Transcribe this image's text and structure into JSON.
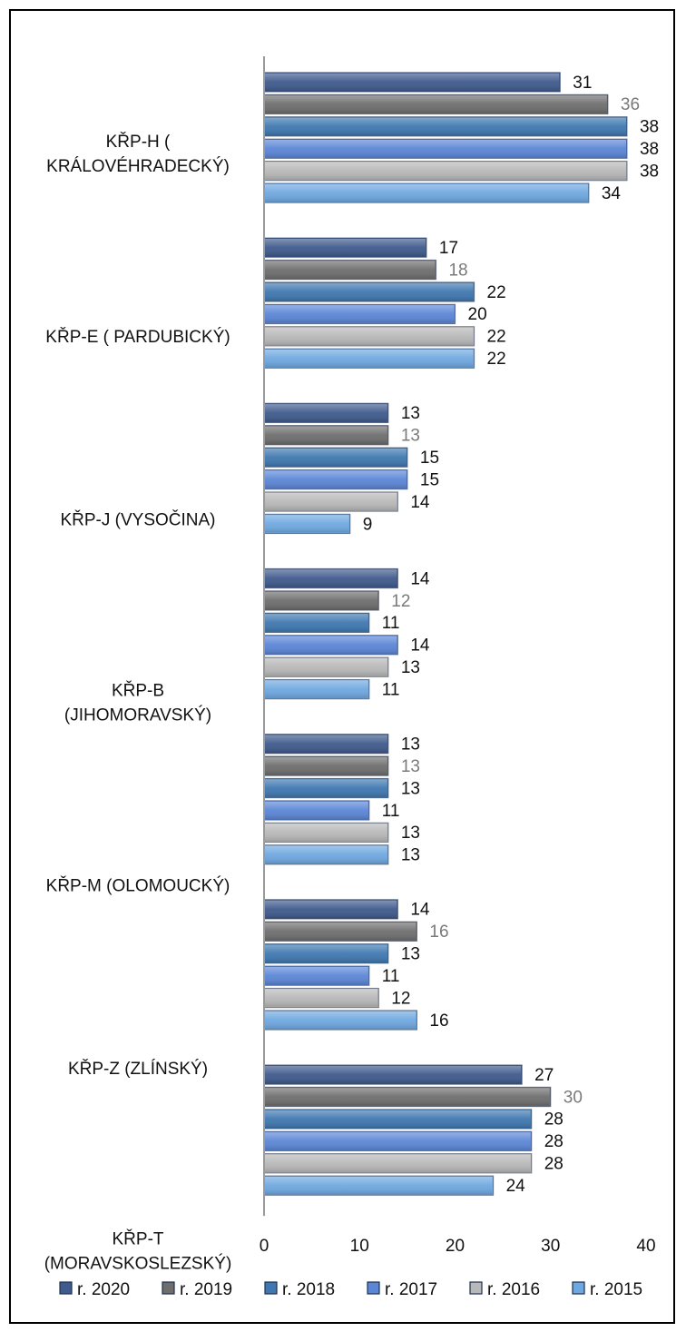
{
  "chart_data": {
    "type": "bar",
    "orientation": "horizontal",
    "title": "",
    "xlabel": "",
    "ylabel": "",
    "xlim": [
      0,
      40
    ],
    "ticks": [
      0,
      10,
      20,
      30,
      40
    ],
    "grid": false,
    "legend_position": "bottom",
    "categories": [
      [
        "KŘP-H (",
        "KRÁLOVÉHRADECKÝ)"
      ],
      [
        "KŘP-E ( PARDUBICKÝ)"
      ],
      [
        "KŘP-J (VYSOČINA)"
      ],
      [
        "KŘP-B",
        "(JIHOMORAVSKÝ)"
      ],
      [
        "KŘP-M (OLOMOUCKÝ)"
      ],
      [
        "KŘP-Z (ZLÍNSKÝ)"
      ],
      [
        "KŘP-T",
        "(MORAVSKOSLEZSKÝ)"
      ]
    ],
    "series": [
      {
        "name": "r. 2020",
        "color": "#3f5a8c",
        "label_color": "#111111",
        "values": [
          31,
          17,
          13,
          14,
          13,
          14,
          27
        ]
      },
      {
        "name": "r. 2019",
        "color": "#6e6e6e",
        "label_color": "#7a7a7a",
        "values": [
          36,
          18,
          13,
          12,
          13,
          16,
          30
        ]
      },
      {
        "name": "r. 2018",
        "color": "#3f78b0",
        "label_color": "#111111",
        "values": [
          38,
          22,
          15,
          11,
          13,
          13,
          28
        ]
      },
      {
        "name": "r. 2017",
        "color": "#5b86d6",
        "label_color": "#111111",
        "values": [
          38,
          20,
          15,
          14,
          11,
          11,
          28
        ]
      },
      {
        "name": "r. 2016",
        "color": "#b8b8b8",
        "label_color": "#111111",
        "values": [
          38,
          22,
          14,
          13,
          13,
          12,
          28
        ]
      },
      {
        "name": "r. 2015",
        "color": "#6fa8e0",
        "label_color": "#111111",
        "values": [
          34,
          22,
          9,
          11,
          13,
          16,
          24
        ]
      }
    ]
  }
}
